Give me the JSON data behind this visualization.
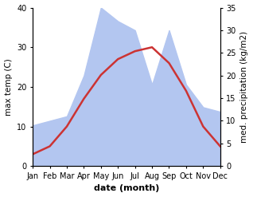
{
  "months": [
    "Jan",
    "Feb",
    "Mar",
    "Apr",
    "May",
    "Jun",
    "Jul",
    "Aug",
    "Sep",
    "Oct",
    "Nov",
    "Dec"
  ],
  "temp": [
    3,
    5,
    10,
    17,
    23,
    27,
    29,
    30,
    26,
    19,
    10,
    5
  ],
  "precip": [
    9,
    10,
    11,
    20,
    35,
    32,
    30,
    18,
    30,
    18,
    13,
    12
  ],
  "temp_color": "#cc3333",
  "precip_fill_color": "#b3c6f0",
  "precip_fill_alpha": 1.0,
  "temp_ylim": [
    0,
    40
  ],
  "precip_ylim": [
    0,
    35
  ],
  "temp_yticks": [
    0,
    10,
    20,
    30,
    40
  ],
  "precip_yticks": [
    0,
    5,
    10,
    15,
    20,
    25,
    30,
    35
  ],
  "xlabel": "date (month)",
  "ylabel_left": "max temp (C)",
  "ylabel_right": "med. precipitation (kg/m2)",
  "xlabel_fontsize": 8,
  "ylabel_fontsize": 7.5,
  "tick_fontsize": 7
}
